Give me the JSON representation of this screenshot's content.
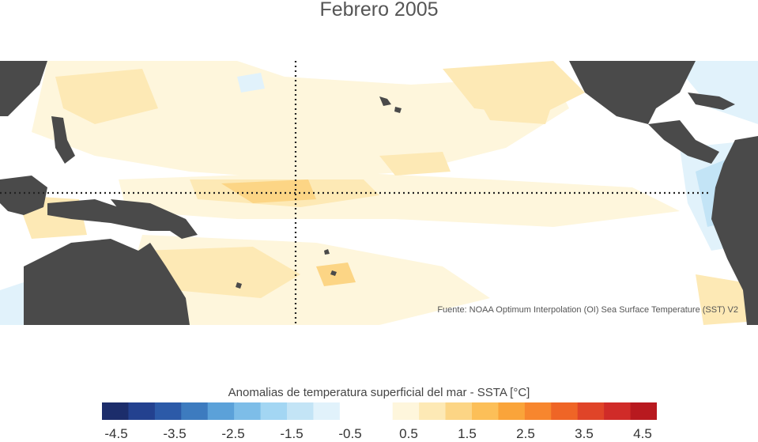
{
  "title": "Febrero 2005",
  "source": "Fuente: NOAA Optimum Interpolation (OI) Sea Surface Temperature (SST) V2",
  "legend": {
    "title": "Anomalias de temperatura superficial del mar - SSTA  [°C]",
    "ticks": [
      "-4.5",
      "-3.5",
      "-2.5",
      "-1.5",
      "-0.5",
      "0.5",
      "1.5",
      "2.5",
      "3.5",
      "4.5"
    ],
    "colors": [
      "#1c2d6b",
      "#23418f",
      "#2c5aa8",
      "#3d7bbf",
      "#5ba1d9",
      "#7dbde8",
      "#a3d6f3",
      "#c3e4f6",
      "#e1f2fb",
      "#ffffff",
      "#ffffff",
      "#fef6dc",
      "#fde9b5",
      "#fcd585",
      "#fcbf58",
      "#faa43a",
      "#f7862e",
      "#ef6526",
      "#e04428",
      "#d02b28",
      "#b8191f"
    ]
  },
  "map": {
    "region": "Pacífico tropical",
    "colors": {
      "land": "#4a4a4a",
      "ocean": "#ffffff",
      "warm_light": "#fef6dc",
      "warm": "#fde9b5",
      "warm_mid": "#fcd585",
      "cool_light": "#e1f2fb",
      "cool": "#c3e4f6"
    }
  }
}
